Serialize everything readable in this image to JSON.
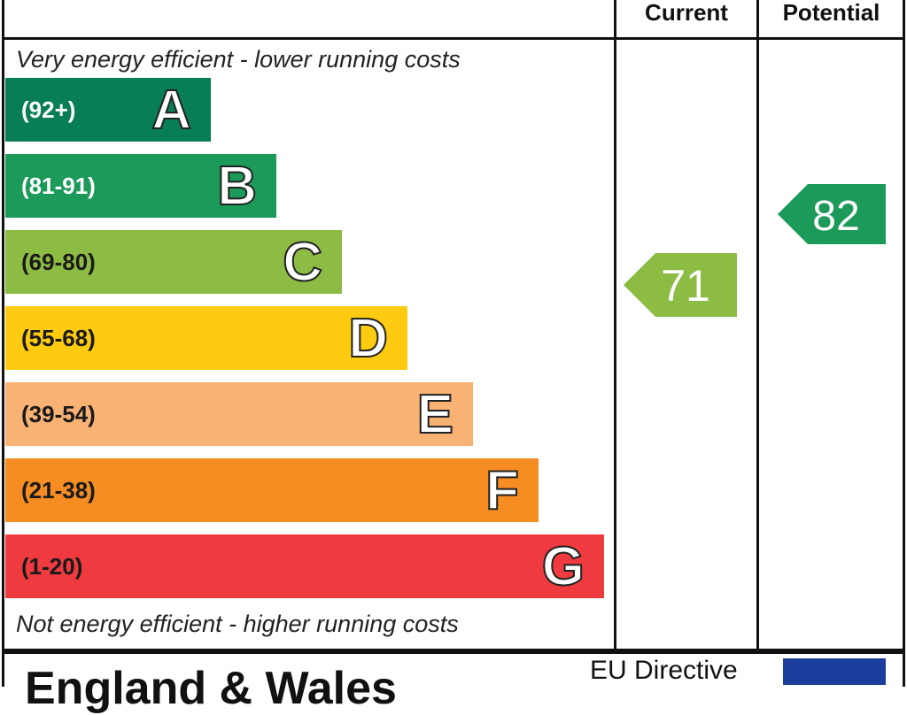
{
  "chart_data": {
    "type": "bar",
    "columns": [
      "Current",
      "Potential"
    ],
    "top_note": "Very energy efficient - lower running costs",
    "bottom_note": "Not energy efficient - higher running costs",
    "bands": [
      {
        "letter": "A",
        "range": "(92+)",
        "color": "#087e55",
        "text_color": "#ffffff",
        "length": 1
      },
      {
        "letter": "B",
        "range": "(81-91)",
        "color": "#1c9a5a",
        "text_color": "#ffffff",
        "length": 2
      },
      {
        "letter": "C",
        "range": "(69-80)",
        "color": "#8cbc43",
        "text_color": "#1a1a1a",
        "length": 3
      },
      {
        "letter": "D",
        "range": "(55-68)",
        "color": "#fecb10",
        "text_color": "#1a1a1a",
        "length": 4
      },
      {
        "letter": "E",
        "range": "(39-54)",
        "color": "#f8b274",
        "text_color": "#1a1a1a",
        "length": 5
      },
      {
        "letter": "F",
        "range": "(21-38)",
        "color": "#f58d22",
        "text_color": "#1a1a1a",
        "length": 6
      },
      {
        "letter": "G",
        "range": "(1-20)",
        "color": "#ef3a3f",
        "text_color": "#1a1a1a",
        "length": 7
      }
    ],
    "ratings": {
      "current": {
        "value": 71,
        "band": "C",
        "color": "#8cbc43"
      },
      "potential": {
        "value": 82,
        "band": "B",
        "color": "#1c9a5a"
      }
    }
  },
  "footer": {
    "region": "England & Wales",
    "directive": "EU Directive"
  }
}
